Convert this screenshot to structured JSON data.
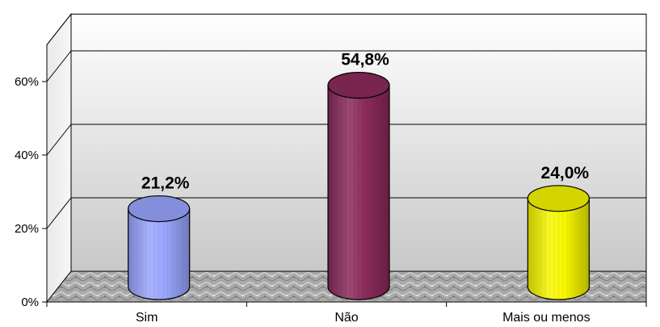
{
  "chart_data": {
    "type": "bar",
    "title": "",
    "xlabel": "",
    "ylabel": "",
    "categories": [
      "Sim",
      "Não",
      "Mais ou menos"
    ],
    "values": [
      21.2,
      54.8,
      24.0
    ],
    "data_labels": [
      "21,2%",
      "54,8%",
      "24,0%"
    ],
    "bar_colors": [
      "#9aa6ff",
      "#8c2b5c",
      "#f7f700"
    ],
    "ylim": [
      0,
      70
    ],
    "yticks": [
      0,
      20,
      40,
      60
    ],
    "ytick_labels": [
      "0%",
      "20%",
      "40%",
      "60%"
    ],
    "grid": true,
    "style": "3d-cylinder",
    "legend": "none"
  }
}
